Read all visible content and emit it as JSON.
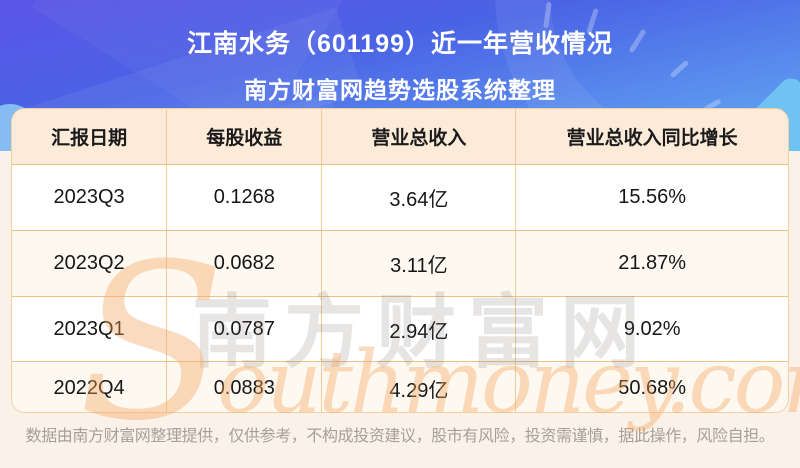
{
  "header": {
    "title": "江南水务（601199）近一年营收情况",
    "subtitle": "南方财富网趋势选股系统整理"
  },
  "chart_data": {
    "type": "table",
    "title": "江南水务（601199）近一年营收情况",
    "subtitle": "南方财富网趋势选股系统整理",
    "columns": [
      "汇报日期",
      "每股收益",
      "营业总收入",
      "营业总收入同比增长"
    ],
    "rows": [
      [
        "2023Q3",
        "0.1268",
        "3.64亿",
        "15.56%"
      ],
      [
        "2023Q2",
        "0.0682",
        "3.11亿",
        "21.87%"
      ],
      [
        "2023Q1",
        "0.0787",
        "2.94亿",
        "9.02%"
      ],
      [
        "2022Q4",
        "0.0883",
        "4.29亿",
        "50.68%"
      ]
    ],
    "numeric": {
      "quarters": [
        "2023Q3",
        "2023Q2",
        "2023Q1",
        "2022Q4"
      ],
      "eps": [
        0.1268,
        0.0682,
        0.0787,
        0.0883
      ],
      "total_revenue_yi": [
        3.64,
        3.11,
        2.94,
        4.29
      ],
      "revenue_yoy_growth_pct": [
        15.56,
        21.87,
        9.02,
        50.68
      ]
    }
  },
  "watermark": {
    "cn": "南方财富网",
    "en_initial": "S",
    "en_rest": "outhmoney.com"
  },
  "footer": {
    "disclaimer": "数据由南方财富网整理提供，仅供参考，不构成投资建议，股市有风险，投资需谨慎，据此操作，风险自担。"
  },
  "colors": {
    "hero_top": "#5b55e6",
    "hero_bottom": "#67abf2",
    "table_header_bg": "#fcebd8",
    "row_alt_bg": "#fdf8f0",
    "row_border": "#f0c185",
    "column_divider": "#f2cb96",
    "page_bg": "#faf1e8",
    "watermark_orange": "#f4a660",
    "footer_text": "#a6a09a",
    "title_text": "#ffffff"
  }
}
